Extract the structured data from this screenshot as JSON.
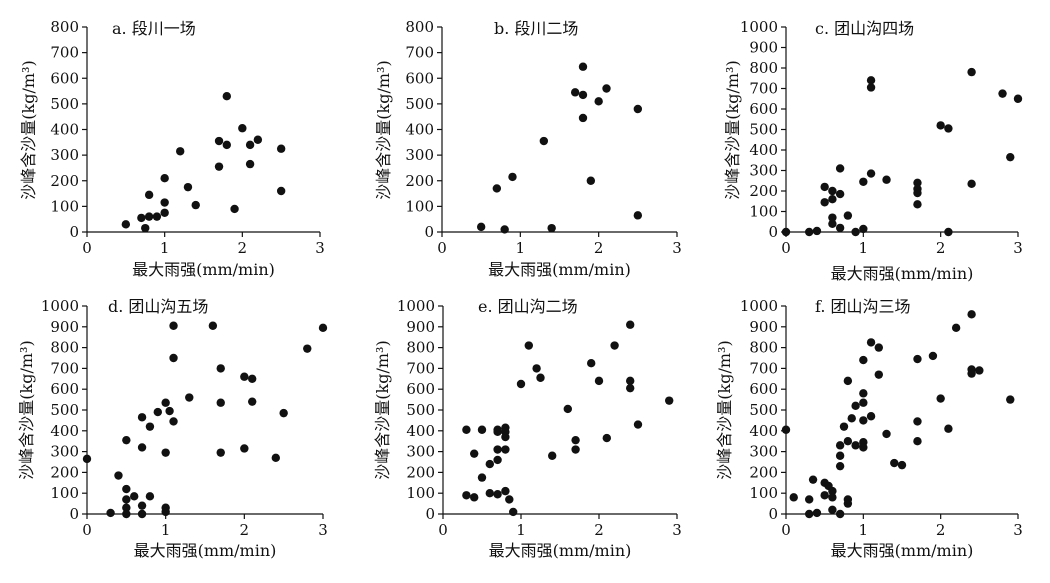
{
  "chart_data": [
    {
      "type": "scatter",
      "title": "a. 段川一场",
      "xlabel": "最大雨强(mm/min)",
      "ylabel": "沙峰含沙量(kg/m³)",
      "xlim": [
        0,
        3
      ],
      "ylim": [
        0,
        800
      ],
      "xticks": [
        0,
        1,
        2,
        3
      ],
      "yticks": [
        0,
        100,
        200,
        300,
        400,
        500,
        600,
        700,
        800
      ],
      "points": [
        [
          0.5,
          30
        ],
        [
          0.7,
          55
        ],
        [
          0.75,
          15
        ],
        [
          0.8,
          60
        ],
        [
          0.8,
          145
        ],
        [
          0.9,
          60
        ],
        [
          1.0,
          75
        ],
        [
          1.0,
          115
        ],
        [
          1.0,
          210
        ],
        [
          1.2,
          315
        ],
        [
          1.3,
          175
        ],
        [
          1.4,
          105
        ],
        [
          1.7,
          255
        ],
        [
          1.7,
          355
        ],
        [
          1.8,
          530
        ],
        [
          1.8,
          340
        ],
        [
          1.9,
          90
        ],
        [
          2.0,
          405
        ],
        [
          2.1,
          265
        ],
        [
          2.1,
          340
        ],
        [
          2.2,
          360
        ],
        [
          2.5,
          325
        ],
        [
          2.5,
          160
        ]
      ]
    },
    {
      "type": "scatter",
      "title": "b. 段川二场",
      "xlabel": "最大雨强(mm/min)",
      "ylabel": "沙峰含沙量(kg/m³)",
      "xlim": [
        0,
        3
      ],
      "ylim": [
        0,
        800
      ],
      "xticks": [
        0,
        1,
        2,
        3
      ],
      "yticks": [
        0,
        100,
        200,
        300,
        400,
        500,
        600,
        700,
        800
      ],
      "points": [
        [
          0.5,
          20
        ],
        [
          0.7,
          170
        ],
        [
          0.8,
          10
        ],
        [
          0.9,
          215
        ],
        [
          1.3,
          355
        ],
        [
          1.4,
          15
        ],
        [
          1.7,
          545
        ],
        [
          1.8,
          645
        ],
        [
          1.8,
          535
        ],
        [
          1.8,
          445
        ],
        [
          1.9,
          200
        ],
        [
          2.0,
          510
        ],
        [
          2.1,
          560
        ],
        [
          2.5,
          480
        ],
        [
          2.5,
          65
        ]
      ]
    },
    {
      "type": "scatter",
      "title": "c. 团山沟四场",
      "xlabel": "最大雨强(mm/min)",
      "ylabel": "沙峰含沙量(kg/m³)",
      "xlim": [
        0,
        3
      ],
      "ylim": [
        0,
        1000
      ],
      "xticks": [
        0,
        1,
        2,
        3
      ],
      "yticks": [
        0,
        100,
        200,
        300,
        400,
        500,
        600,
        700,
        800,
        900,
        1000
      ],
      "points": [
        [
          0.0,
          0
        ],
        [
          0.3,
          0
        ],
        [
          0.4,
          5
        ],
        [
          0.5,
          145
        ],
        [
          0.5,
          220
        ],
        [
          0.6,
          40
        ],
        [
          0.6,
          70
        ],
        [
          0.6,
          160
        ],
        [
          0.6,
          200
        ],
        [
          0.7,
          20
        ],
        [
          0.7,
          185
        ],
        [
          0.7,
          310
        ],
        [
          0.8,
          80
        ],
        [
          0.9,
          0
        ],
        [
          1.0,
          15
        ],
        [
          1.0,
          245
        ],
        [
          1.1,
          285
        ],
        [
          1.1,
          705
        ],
        [
          1.1,
          740
        ],
        [
          1.3,
          255
        ],
        [
          1.7,
          240
        ],
        [
          1.7,
          210
        ],
        [
          1.7,
          190
        ],
        [
          1.7,
          135
        ],
        [
          2.0,
          520
        ],
        [
          2.1,
          505
        ],
        [
          2.1,
          0
        ],
        [
          2.4,
          780
        ],
        [
          2.4,
          235
        ],
        [
          2.8,
          675
        ],
        [
          2.9,
          365
        ],
        [
          3.0,
          650
        ]
      ]
    },
    {
      "type": "scatter",
      "title": "d. 团山沟五场",
      "xlabel": "最大雨强(mm/min)",
      "ylabel": "沙峰含沙量(kg/m³)",
      "xlim": [
        0,
        3
      ],
      "ylim": [
        0,
        1000
      ],
      "xticks": [
        0,
        1,
        2,
        3
      ],
      "yticks": [
        0,
        100,
        200,
        300,
        400,
        500,
        600,
        700,
        800,
        900,
        1000
      ],
      "points": [
        [
          0.0,
          265
        ],
        [
          0.3,
          5
        ],
        [
          0.4,
          185
        ],
        [
          0.5,
          120
        ],
        [
          0.5,
          70
        ],
        [
          0.5,
          30
        ],
        [
          0.5,
          0
        ],
        [
          0.5,
          355
        ],
        [
          0.6,
          85
        ],
        [
          0.7,
          40
        ],
        [
          0.7,
          320
        ],
        [
          0.7,
          465
        ],
        [
          0.7,
          0
        ],
        [
          0.8,
          420
        ],
        [
          0.8,
          85
        ],
        [
          0.9,
          490
        ],
        [
          1.0,
          30
        ],
        [
          1.0,
          10
        ],
        [
          1.0,
          295
        ],
        [
          1.0,
          535
        ],
        [
          1.05,
          495
        ],
        [
          1.1,
          905
        ],
        [
          1.1,
          750
        ],
        [
          1.1,
          445
        ],
        [
          1.3,
          560
        ],
        [
          1.6,
          905
        ],
        [
          1.7,
          700
        ],
        [
          1.7,
          535
        ],
        [
          1.7,
          295
        ],
        [
          2.0,
          660
        ],
        [
          2.0,
          315
        ],
        [
          2.1,
          650
        ],
        [
          2.1,
          540
        ],
        [
          2.4,
          270
        ],
        [
          2.5,
          485
        ],
        [
          2.8,
          795
        ],
        [
          3.0,
          895
        ]
      ]
    },
    {
      "type": "scatter",
      "title": "e. 团山沟二场",
      "xlabel": "最大雨强(mm/min)",
      "ylabel": "沙峰含沙量(kg/m³)",
      "xlim": [
        0,
        3
      ],
      "ylim": [
        0,
        1000
      ],
      "xticks": [
        0,
        1,
        2,
        3
      ],
      "yticks": [
        0,
        100,
        200,
        300,
        400,
        500,
        600,
        700,
        800,
        900,
        1000
      ],
      "points": [
        [
          0.3,
          405
        ],
        [
          0.3,
          90
        ],
        [
          0.4,
          80
        ],
        [
          0.4,
          290
        ],
        [
          0.5,
          175
        ],
        [
          0.5,
          405
        ],
        [
          0.6,
          100
        ],
        [
          0.6,
          240
        ],
        [
          0.7,
          405
        ],
        [
          0.7,
          395
        ],
        [
          0.7,
          310
        ],
        [
          0.7,
          260
        ],
        [
          0.7,
          95
        ],
        [
          0.8,
          415
        ],
        [
          0.8,
          395
        ],
        [
          0.8,
          370
        ],
        [
          0.8,
          310
        ],
        [
          0.8,
          110
        ],
        [
          0.85,
          70
        ],
        [
          0.9,
          10
        ],
        [
          1.0,
          625
        ],
        [
          1.1,
          810
        ],
        [
          1.2,
          700
        ],
        [
          1.25,
          655
        ],
        [
          1.4,
          280
        ],
        [
          1.6,
          505
        ],
        [
          1.7,
          355
        ],
        [
          1.7,
          310
        ],
        [
          1.9,
          725
        ],
        [
          2.0,
          640
        ],
        [
          2.1,
          365
        ],
        [
          2.2,
          810
        ],
        [
          2.4,
          910
        ],
        [
          2.4,
          640
        ],
        [
          2.4,
          605
        ],
        [
          2.5,
          430
        ],
        [
          2.9,
          545
        ]
      ]
    },
    {
      "type": "scatter",
      "title": "f. 团山沟三场",
      "xlabel": "最大雨强(mm/min)",
      "ylabel": "沙峰含沙量(kg/m³)",
      "xlim": [
        0,
        3
      ],
      "ylim": [
        0,
        1000
      ],
      "xticks": [
        0,
        1,
        2,
        3
      ],
      "yticks": [
        0,
        100,
        200,
        300,
        400,
        500,
        600,
        700,
        800,
        900,
        1000
      ],
      "points": [
        [
          0.0,
          405
        ],
        [
          0.1,
          80
        ],
        [
          0.3,
          70
        ],
        [
          0.3,
          0
        ],
        [
          0.35,
          165
        ],
        [
          0.4,
          5
        ],
        [
          0.5,
          150
        ],
        [
          0.5,
          90
        ],
        [
          0.55,
          135
        ],
        [
          0.6,
          110
        ],
        [
          0.6,
          80
        ],
        [
          0.6,
          20
        ],
        [
          0.7,
          330
        ],
        [
          0.7,
          280
        ],
        [
          0.7,
          230
        ],
        [
          0.7,
          0
        ],
        [
          0.75,
          420
        ],
        [
          0.8,
          640
        ],
        [
          0.8,
          50
        ],
        [
          0.8,
          70
        ],
        [
          0.8,
          350
        ],
        [
          0.85,
          460
        ],
        [
          0.9,
          520
        ],
        [
          0.9,
          330
        ],
        [
          1.0,
          740
        ],
        [
          1.0,
          580
        ],
        [
          1.0,
          535
        ],
        [
          1.0,
          450
        ],
        [
          1.0,
          345
        ],
        [
          1.0,
          320
        ],
        [
          1.1,
          825
        ],
        [
          1.1,
          470
        ],
        [
          1.2,
          800
        ],
        [
          1.2,
          670
        ],
        [
          1.3,
          385
        ],
        [
          1.4,
          245
        ],
        [
          1.5,
          235
        ],
        [
          1.7,
          745
        ],
        [
          1.7,
          445
        ],
        [
          1.7,
          350
        ],
        [
          1.9,
          760
        ],
        [
          2.0,
          555
        ],
        [
          2.1,
          410
        ],
        [
          2.2,
          895
        ],
        [
          2.4,
          960
        ],
        [
          2.4,
          695
        ],
        [
          2.4,
          675
        ],
        [
          2.5,
          690
        ],
        [
          2.9,
          550
        ]
      ]
    }
  ]
}
